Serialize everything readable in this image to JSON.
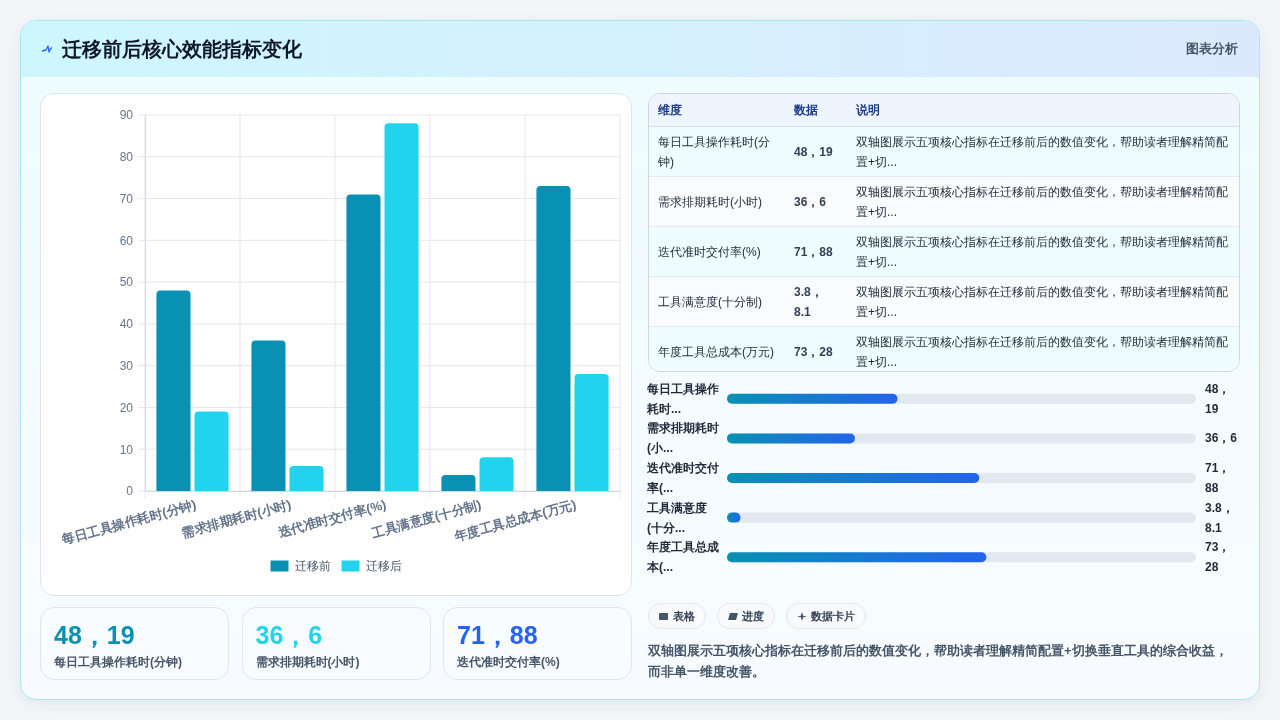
{
  "chart_data": [
    {
      "type": "bar",
      "title": "迁移前后核心效能指标变化",
      "annotations": [
        "图表分析"
      ],
      "categories": [
        "每日工具操作耗时(分钟)",
        "需求排期耗时(小时)",
        "迭代准时交付率(%)",
        "工具满意度(十分制)",
        "年度工具总成本(万元)"
      ],
      "series": [
        {
          "name": "迁移前",
          "color": "#0891b2",
          "values": [
            48,
            36,
            71,
            3.8,
            73
          ]
        },
        {
          "name": "迁移后",
          "color": "#22d3ee",
          "values": [
            19,
            6,
            88,
            8.1,
            28
          ]
        }
      ],
      "ylim": [
        0,
        90
      ],
      "yticks": [
        0,
        10,
        20,
        30,
        40,
        50,
        60,
        70,
        80,
        90
      ],
      "grid": true,
      "legend": "bottom"
    },
    {
      "type": "other",
      "categories": [
        "每日工具操作耗时(分钟)",
        "需求排期耗时(小时)",
        "迭代准时交付率(%)",
        "工具满意度(十分制)",
        "年度工具总成本(万元)"
      ],
      "value_labels": [
        "48，19",
        "36，6",
        "71，88",
        "3.8，8.1",
        "73，28"
      ],
      "annotations": [
        "维度",
        "数据",
        "说明",
        "双轴图展示五项核心指标在迁移前后的数值变化，帮助读者理解精简配置+切...",
        "双轴图展示五项核心指标在迁移前后的数值变化，帮助读者理解精简配置+切...",
        "双轴图展示五项核心指标在迁移前后的数值变化，帮助读者理解精简配置+切...",
        "双轴图展示五项核心指标在迁移前后的数值变化，帮助读者理解精简配置+切...",
        "双轴图展示五项核心指标在迁移前后的数值变化，帮助读者理解精简配置+切..."
      ]
    },
    {
      "type": "bar",
      "orientation": "horizontal",
      "categories": [
        "每日工具操作耗时...",
        "需求排期耗时(小...",
        "迭代准时交付率(...",
        "工具满意度(十分...",
        "年度工具总成本(..."
      ],
      "values": [
        48,
        36,
        71,
        3.8,
        73
      ],
      "value_labels": [
        "48，19",
        "36，6",
        "71，88",
        "3.8，8.1",
        "73，28"
      ],
      "color": "#0891b2",
      "xlim": [
        0,
        132
      ]
    },
    {
      "type": "other",
      "categories": [
        "每日工具操作耗时(分钟)",
        "需求排期耗时(小时)",
        "迭代准时交付率(%)"
      ],
      "value_labels": [
        "48，19",
        "36，6",
        "71，88"
      ]
    },
    {
      "type": "other",
      "categories": [
        "表格",
        "进度",
        "数据卡片"
      ],
      "annotations": [
        "双轴图展示五项核心指标在迁移前后的数值变化，帮助读者理解精简配置+切换垂直工具的综合收益，而非单一维度改善。"
      ]
    }
  ]
}
